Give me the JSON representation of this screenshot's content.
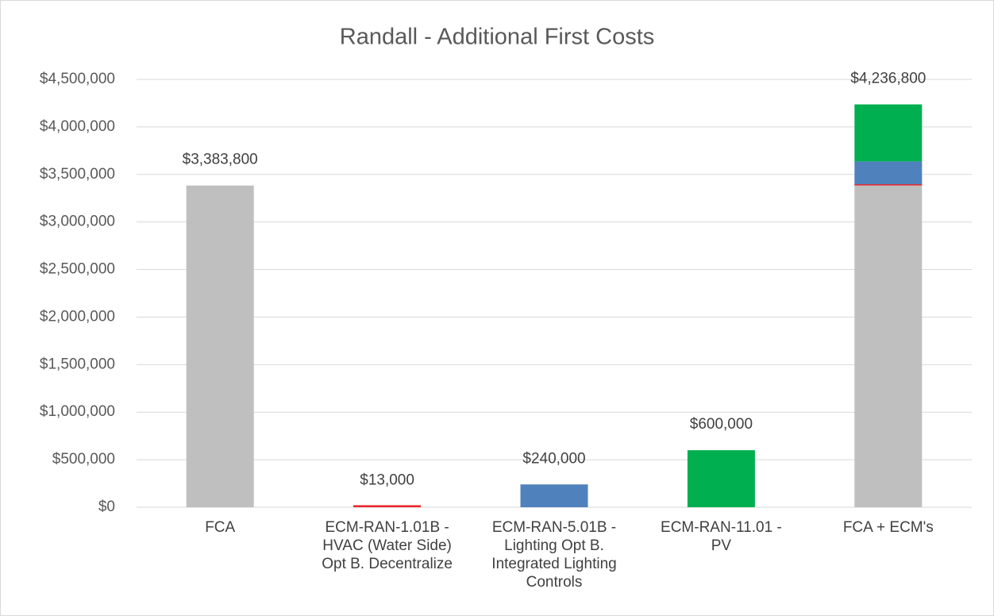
{
  "chart_data": {
    "type": "stacked_bar",
    "title": "Randall - Additional First Costs",
    "categories": [
      [
        "FCA"
      ],
      [
        "ECM-RAN-1.01B -",
        "HVAC (Water Side)",
        "Opt B. Decentralize"
      ],
      [
        "ECM-RAN-5.01B -",
        "Lighting Opt B.",
        "Integrated Lighting",
        "Controls"
      ],
      [
        "ECM-RAN-11.01 -",
        "PV"
      ],
      [
        "FCA + ECM's"
      ]
    ],
    "series": [
      {
        "color": "#bfbfbf",
        "values": [
          3383800,
          null,
          null,
          null,
          3383800
        ]
      },
      {
        "color": "#e8292b",
        "values": [
          null,
          13000,
          null,
          null,
          13000
        ]
      },
      {
        "color": "#4f81bd",
        "values": [
          null,
          null,
          240000,
          null,
          240000
        ]
      },
      {
        "color": "#00b050",
        "values": [
          null,
          null,
          null,
          600000,
          600000
        ]
      }
    ],
    "totals": [
      3383800,
      13000,
      240000,
      600000,
      4236800
    ],
    "total_labels": [
      "$3,383,800",
      "$13,000",
      "$240,000",
      "$600,000",
      "$4,236,800"
    ],
    "ylim": [
      0,
      4500000
    ],
    "yticks": [
      {
        "value": 0,
        "label": "$0"
      },
      {
        "value": 500000,
        "label": "$500,000"
      },
      {
        "value": 1000000,
        "label": "$1,000,000"
      },
      {
        "value": 1500000,
        "label": "$1,500,000"
      },
      {
        "value": 2000000,
        "label": "$2,000,000"
      },
      {
        "value": 2500000,
        "label": "$2,500,000"
      },
      {
        "value": 3000000,
        "label": "$3,000,000"
      },
      {
        "value": 3500000,
        "label": "$3,500,000"
      },
      {
        "value": 4000000,
        "label": "$4,000,000"
      },
      {
        "value": 4500000,
        "label": "$4,500,000"
      }
    ],
    "grid": true
  }
}
